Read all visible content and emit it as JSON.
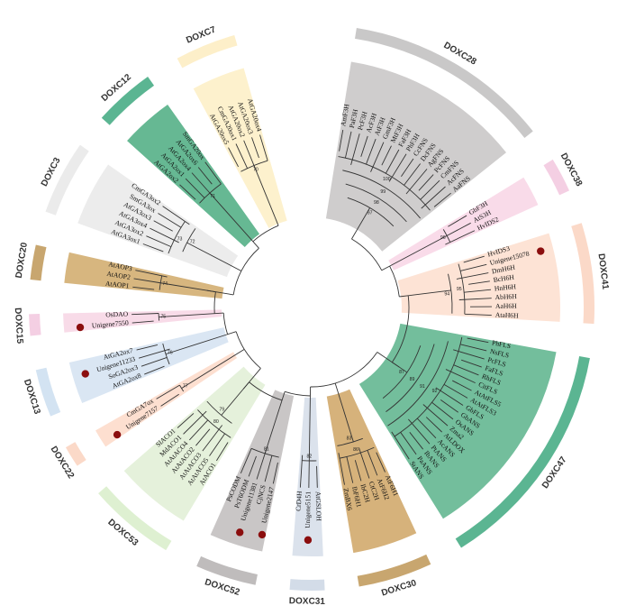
{
  "clades": [
    {
      "name": "DOXC28",
      "ring_color": "#c9c8c8",
      "bg_color": "#cfcdcd",
      "leaves": [
        "AmF3H",
        "PaF3H",
        "PcF3H",
        "AcF3H",
        "AtF3H",
        "GmF3H",
        "MtF3H",
        "FaF3H",
        "PhF3H",
        "CcFNS",
        "DcFNS",
        "AgFNS",
        "PcFNS",
        "CmFNS",
        "AcFNS",
        "AaFNS"
      ]
    },
    {
      "name": "DOXC38",
      "ring_color": "#f4cfe3",
      "bg_color": "#f9dbe9",
      "leaves": [
        "GbF3H",
        "AtS3H",
        "HvIDS2"
      ]
    },
    {
      "name": "DOXC41",
      "ring_color": "#fbd9c8",
      "bg_color": "#fde3d5",
      "leaves": [
        "HvIDS3",
        "Unigene15078",
        "DmH6H",
        "BcH6H",
        "HnH6H",
        "AbH6H",
        "AaH6H",
        "AtaH6H"
      ]
    },
    {
      "name": "DOXC47",
      "ring_color": "#5bb592",
      "bg_color": "#73be9c",
      "leaves": [
        "PhFLS",
        "NsFLS",
        "PcFLS",
        "FaFLS",
        "RhFLS",
        "CitFLS",
        "AtAtFLS5",
        "AtAtFLS3",
        "GbFLS",
        "GbANS",
        "OsANS",
        "Zma2",
        "AtLDOX",
        "AcANS",
        "PtANS",
        "IbANS",
        "PaANS",
        "StANS"
      ]
    },
    {
      "name": "DOXC30",
      "ring_color": "#c8a66f",
      "bg_color": "#d6b27b",
      "leaves": [
        "AtF6H1",
        "AtF6H2",
        "CtC2H",
        "IbC2H",
        "IbF6H1",
        "ZmBX6"
      ]
    },
    {
      "name": "DOXC31",
      "ring_color": "#d3dce8",
      "bg_color": "#dbe2ec",
      "leaves": [
        "AtGSLOH",
        "Unigene5151",
        "CrD4H"
      ]
    },
    {
      "name": "DOXC52",
      "ring_color": "#bfbcbc",
      "bg_color": "#c9c6c6",
      "leaves": [
        "Unigene2147",
        "CjNCS",
        "Unigene11381",
        "PsT6ODM",
        "PsCODM"
      ]
    },
    {
      "name": "DOXC53",
      "ring_color": "#def0d1",
      "bg_color": "#e5f1db",
      "leaves": [
        "AtACO1",
        "AtAtACO5",
        "AtAtACO3",
        "AtAtACO2",
        "AtAtACO4",
        "MdACO1",
        "SlACO1"
      ]
    },
    {
      "name": "DOXC22",
      "ring_color": "#fbd9c8",
      "bg_color": "#fddfd0",
      "leaves": [
        "Unigene7157",
        "CmGA7ox"
      ]
    },
    {
      "name": "DOXC13",
      "ring_color": "#d3e3f2",
      "bg_color": "#dae6f3",
      "leaves": [
        "AtGA2ox8",
        "SoGA2ox3",
        "Unigene11233",
        "AtGA2ox7"
      ]
    },
    {
      "name": "DOXC15",
      "ring_color": "#f4cfe3",
      "bg_color": "#f8dbe8",
      "leaves": [
        "Unigene7550",
        "OsDAO"
      ]
    },
    {
      "name": "DOXC20",
      "ring_color": "#c8a66f",
      "bg_color": "#d7b67f",
      "leaves": [
        "AtAOP1",
        "AtAOP2",
        "AtAOP3"
      ]
    },
    {
      "name": "DOXC3",
      "ring_color": "#ebebeb",
      "bg_color": "#ececec",
      "leaves": [
        "AtGA3ox1",
        "AtGA3ox2",
        "AtGA3ox4",
        "AtGA3ox3",
        "SmGA3ox",
        "CmGA3ox2"
      ]
    },
    {
      "name": "DOXC12",
      "ring_color": "#5bb592",
      "bg_color": "#66b893",
      "leaves": [
        "AtGA2ox2",
        "AtGA2ox1",
        "AtGA2ox4",
        "AtGA2ox6",
        "SmGA20ox"
      ]
    },
    {
      "name": "DOXC7",
      "ring_color": "#fdefc9",
      "bg_color": "#fdf1cd",
      "leaves": [
        "AtGA20ox5",
        "CmGA20ox1",
        "AtGA20ox2",
        "AtGA20ox3",
        "AtGA20ox4"
      ]
    }
  ],
  "highlighted_leaves": [
    "Unigene15078",
    "Unigene5151",
    "Unigene2147",
    "Unigene11381",
    "Unigene7157",
    "Unigene11233",
    "Unigene7550"
  ],
  "bootstrap_labels": [
    "100",
    "99",
    "98",
    "97",
    "96",
    "95",
    "94",
    "92",
    "91",
    "89",
    "87",
    "86",
    "83",
    "82",
    "81",
    "80",
    "79",
    "77",
    "76",
    "75",
    "74",
    "73",
    "72",
    "71",
    "70",
    "69",
    "65",
    "62",
    "61",
    "60",
    "56",
    "55",
    "52",
    "51",
    "49",
    "48",
    "47",
    "46",
    "45",
    "43",
    "42",
    "40",
    "38",
    "35",
    "33",
    "29",
    "27",
    "20"
  ],
  "highlight_color": "#8b0e0e"
}
